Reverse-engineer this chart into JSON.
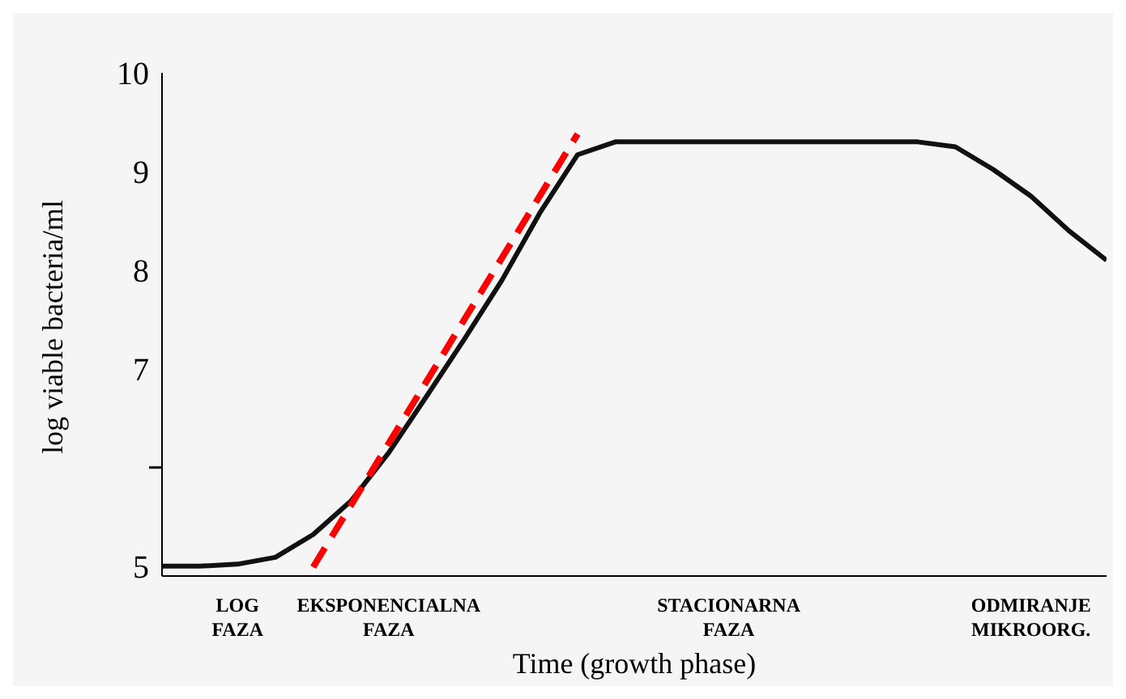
{
  "chart_data": {
    "type": "line",
    "xlabel": "Time (growth phase)",
    "ylabel": "log viable bacteria/ml",
    "categories": [
      null,
      null,
      "LOG FAZA",
      null,
      null,
      null,
      "EKSPONENCIALNA FAZA",
      null,
      null,
      null,
      null,
      null,
      null,
      null,
      null,
      "STACIONARNA FAZA",
      null,
      null,
      null,
      null,
      null,
      null,
      null,
      "ODMIRANJE MIKROORG.",
      null,
      null
    ],
    "ylim": [
      4.9,
      10
    ],
    "yticks": [
      5,
      {
        "value": 6,
        "label": null
      },
      7,
      8,
      9,
      10
    ],
    "series": [
      {
        "color": "#111111",
        "values": [
          5.0,
          5.0,
          5.02,
          5.09,
          5.32,
          5.66,
          6.15,
          6.72,
          7.3,
          7.9,
          8.58,
          9.17,
          9.3,
          9.3,
          9.3,
          9.3,
          9.3,
          9.3,
          9.3,
          9.3,
          9.3,
          9.25,
          9.02,
          8.75,
          8.4,
          8.1
        ]
      },
      {
        "color": "#ff0000",
        "line_style": "dashed",
        "values": [
          null,
          null,
          null,
          null,
          4.99,
          null,
          null,
          null,
          null,
          null,
          null,
          9.38,
          null,
          null,
          null,
          null,
          null,
          null,
          null,
          null,
          null,
          null,
          null,
          null,
          null,
          null
        ]
      }
    ],
    "grid": false,
    "marker": "none"
  }
}
